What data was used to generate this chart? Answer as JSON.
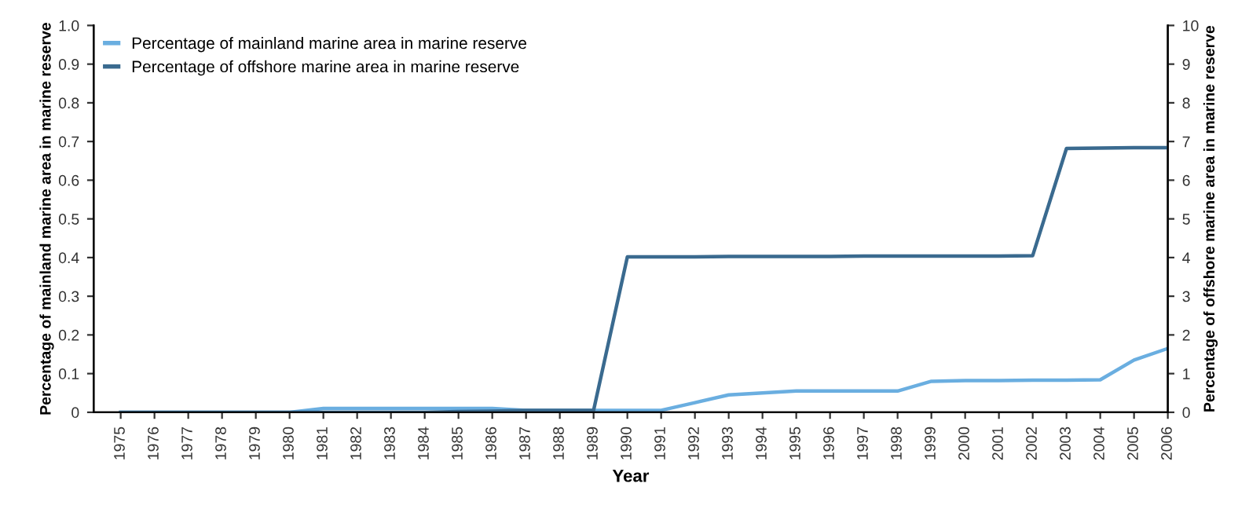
{
  "chart_data": {
    "type": "line",
    "xlabel": "Year",
    "ylabel": "Percentage of mainland marine area in marine reserve",
    "y2label": "Percentage of offshore marine area in marine reserve",
    "categories": [
      "1975",
      "1976",
      "1977",
      "1978",
      "1979",
      "1980",
      "1981",
      "1982",
      "1983",
      "1984",
      "1985",
      "1986",
      "1987",
      "1988",
      "1989",
      "1990",
      "1991",
      "1992",
      "1993",
      "1994",
      "1995",
      "1996",
      "1997",
      "1998",
      "1999",
      "2000",
      "2001",
      "2002",
      "2003",
      "2004",
      "2005",
      "2006"
    ],
    "series": [
      {
        "name": "Percentage of mainland marine area in marine reserve",
        "color": "#6aaee0",
        "values": [
          0,
          0,
          0,
          0,
          0,
          0,
          0.01,
          0.01,
          0.01,
          0.01,
          0.01,
          0.01,
          0.005,
          0.005,
          0.005,
          0.005,
          0.005,
          0.025,
          0.045,
          0.05,
          0.055,
          0.055,
          0.055,
          0.055,
          0.08,
          0.082,
          0.082,
          0.083,
          0.083,
          0.084,
          0.135,
          0.165
        ]
      },
      {
        "name": "Percentage of offshore marine area in marine reserve",
        "color": "#3a6a8f",
        "axis": "y2",
        "values": [
          0,
          0,
          0,
          0,
          0,
          0,
          0,
          0,
          0,
          0,
          0.02,
          0.03,
          0.05,
          0.05,
          0.05,
          4.02,
          4.02,
          4.02,
          4.03,
          4.03,
          4.03,
          4.03,
          4.04,
          4.04,
          4.04,
          4.04,
          4.04,
          4.05,
          6.82,
          6.83,
          6.84,
          6.84
        ]
      }
    ],
    "ylim": [
      0,
      1.0
    ],
    "yticks": [
      0,
      0.1,
      0.2,
      0.3,
      0.4,
      0.5,
      0.6,
      0.7,
      0.8,
      0.9,
      {
        "value": 1.0,
        "label": "1.0"
      }
    ],
    "y2lim": [
      0,
      10
    ],
    "y2ticks": [
      0,
      1,
      2,
      3,
      4,
      5,
      6,
      7,
      8,
      9,
      10
    ],
    "legend": "top left",
    "grid": false
  }
}
